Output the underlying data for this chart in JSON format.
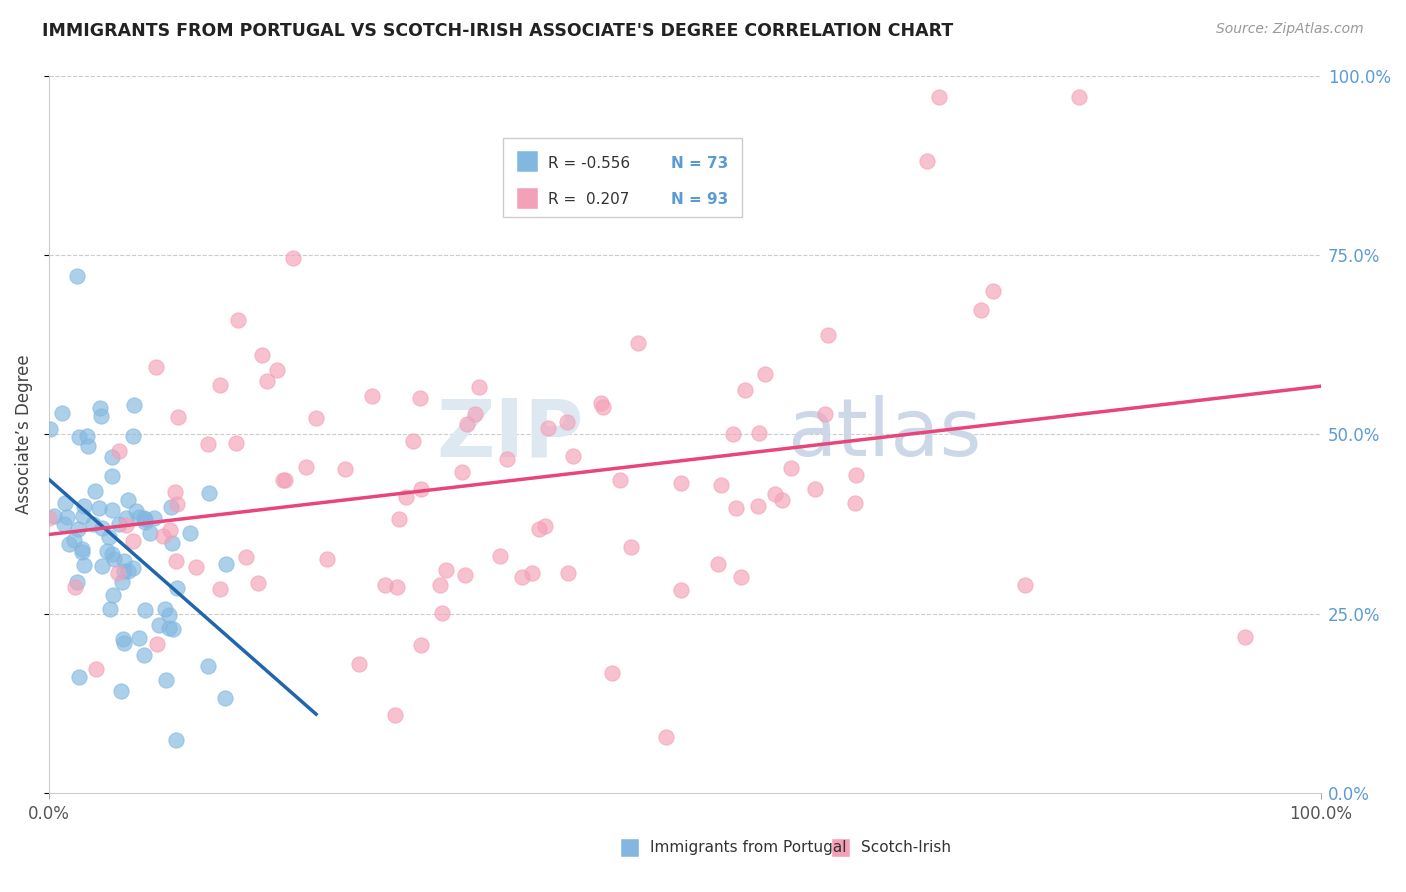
{
  "title": "IMMIGRANTS FROM PORTUGAL VS SCOTCH-IRISH ASSOCIATE'S DEGREE CORRELATION CHART",
  "source": "Source: ZipAtlas.com",
  "ylabel": "Associate’s Degree",
  "r_portugal": -0.556,
  "n_portugal": 73,
  "r_scotch": 0.207,
  "n_scotch": 93,
  "color_portugal": "#82b8e0",
  "color_scotch": "#f4a0b8",
  "color_portugal_line": "#2166ac",
  "color_scotch_line": "#e8457a",
  "legend_r1_text": "R = -0.556",
  "legend_n1_text": "N = 73",
  "legend_r2_text": "R =  0.207",
  "legend_n2_text": "N = 93",
  "label_portugal": "Immigrants from Portugal",
  "label_scotch": "Scotch-Irish"
}
